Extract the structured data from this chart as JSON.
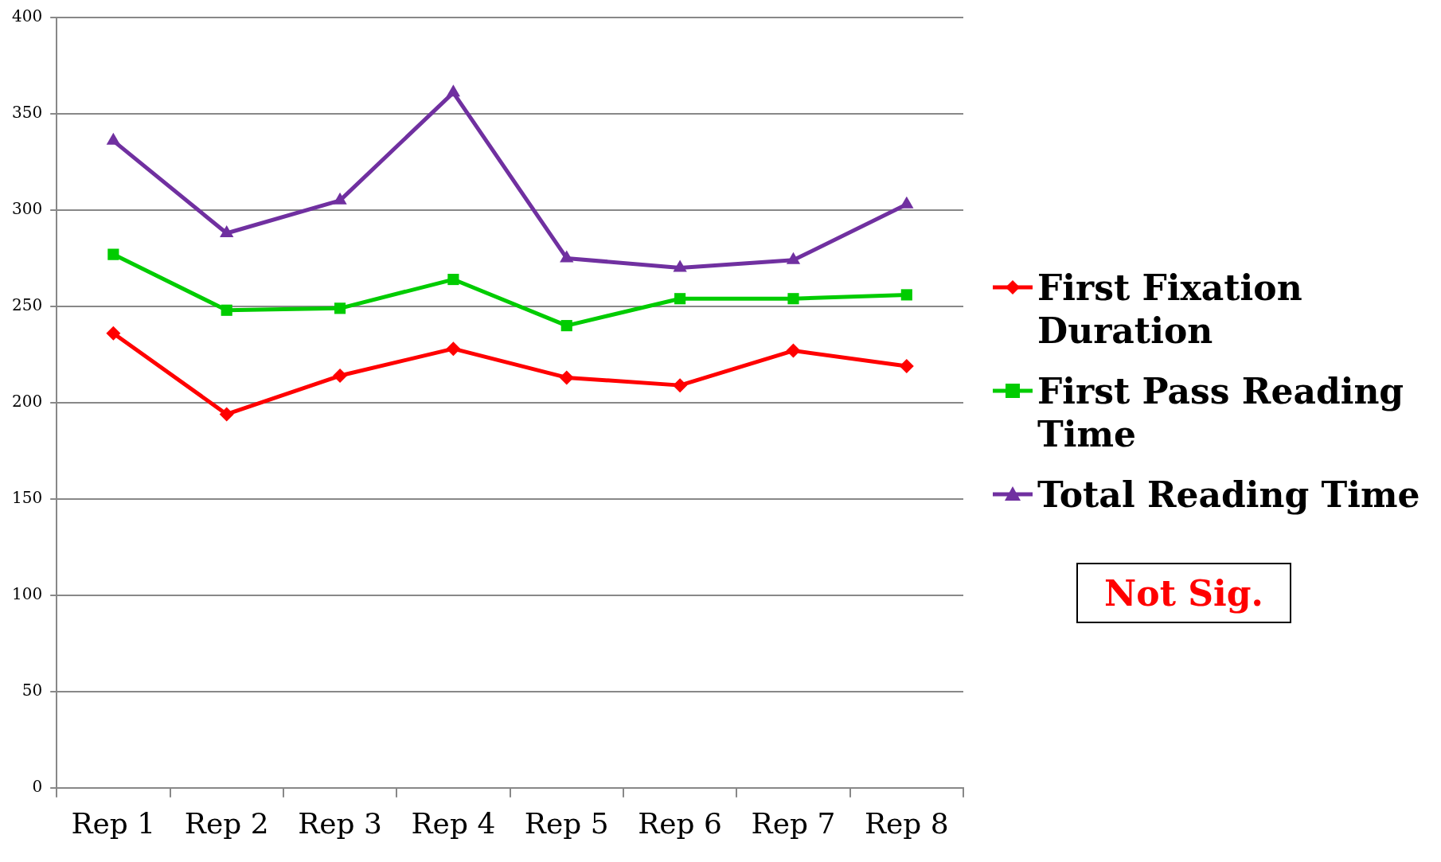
{
  "chart_data": {
    "type": "line",
    "categories": [
      "Rep 1",
      "Rep 2",
      "Rep 3",
      "Rep 4",
      "Rep 5",
      "Rep 6",
      "Rep 7",
      "Rep 8"
    ],
    "series": [
      {
        "name": "First Fixation Duration",
        "color": "#ff0000",
        "marker": "diamond",
        "values": [
          236,
          194,
          214,
          228,
          213,
          209,
          227,
          219
        ]
      },
      {
        "name": "First Pass Reading Time",
        "color": "#00cc00",
        "marker": "square",
        "values": [
          277,
          248,
          249,
          264,
          240,
          254,
          254,
          256
        ]
      },
      {
        "name": "Total Reading Time",
        "color": "#7030a0",
        "marker": "triangle",
        "values": [
          336,
          288,
          305,
          361,
          275,
          270,
          274,
          303
        ]
      }
    ],
    "ylim": [
      0,
      400
    ],
    "yticks": [
      0,
      50,
      100,
      150,
      200,
      250,
      300,
      350,
      400
    ],
    "grid": "y",
    "legend": "right",
    "line_style": "solid",
    "annotations": [
      "Not Sig."
    ]
  }
}
